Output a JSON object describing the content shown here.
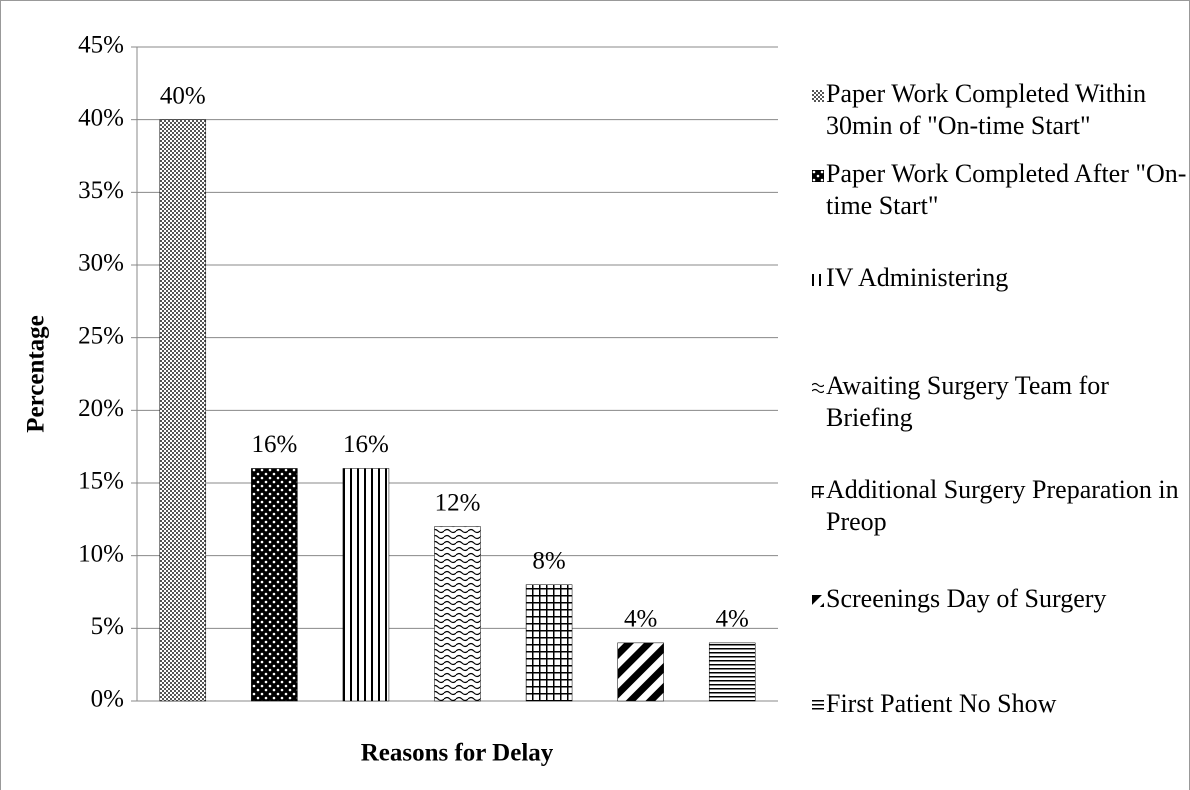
{
  "chart_data": {
    "type": "bar",
    "y_label": "Percentage",
    "x_label": "Reasons for Delay",
    "categories": [
      null
    ],
    "series": [
      {
        "name": "Paper Work Completed Within 30min of \"On-time Start\"",
        "color": "#000000",
        "values": [
          40
        ],
        "value_labels": [
          "40%"
        ]
      },
      {
        "name": "Paper Work Completed After \"On-time Start\"",
        "color": "#000000",
        "values": [
          16
        ],
        "value_labels": [
          "16%"
        ]
      },
      {
        "name": "IV Administering",
        "color": "#000000",
        "values": [
          16
        ],
        "value_labels": [
          "16%"
        ]
      },
      {
        "name": "Awaiting Surgery Team for Briefing",
        "color": "#000000",
        "values": [
          12
        ],
        "value_labels": [
          "12%"
        ]
      },
      {
        "name": "Additional Surgery Preparation in Preop",
        "color": "#000000",
        "values": [
          8
        ],
        "value_labels": [
          "8%"
        ]
      },
      {
        "name": "Screenings Day of Surgery",
        "color": "#000000",
        "values": [
          4
        ],
        "value_labels": [
          "4%"
        ]
      },
      {
        "name": "First Patient No Show",
        "color": "#000000",
        "values": [
          4
        ],
        "value_labels": [
          "4%"
        ]
      }
    ],
    "ylim": [
      0,
      45
    ],
    "yticks": [
      {
        "value": 0,
        "label": "0%"
      },
      {
        "value": 5,
        "label": "5%"
      },
      {
        "value": 10,
        "label": "10%"
      },
      {
        "value": 15,
        "label": "15%"
      },
      {
        "value": 20,
        "label": "20%"
      },
      {
        "value": 25,
        "label": "25%"
      },
      {
        "value": 30,
        "label": "30%"
      },
      {
        "value": 35,
        "label": "35%"
      },
      {
        "value": 40,
        "label": "40%"
      },
      {
        "value": 45,
        "label": "45%"
      }
    ],
    "grid": true,
    "legend": "right"
  }
}
